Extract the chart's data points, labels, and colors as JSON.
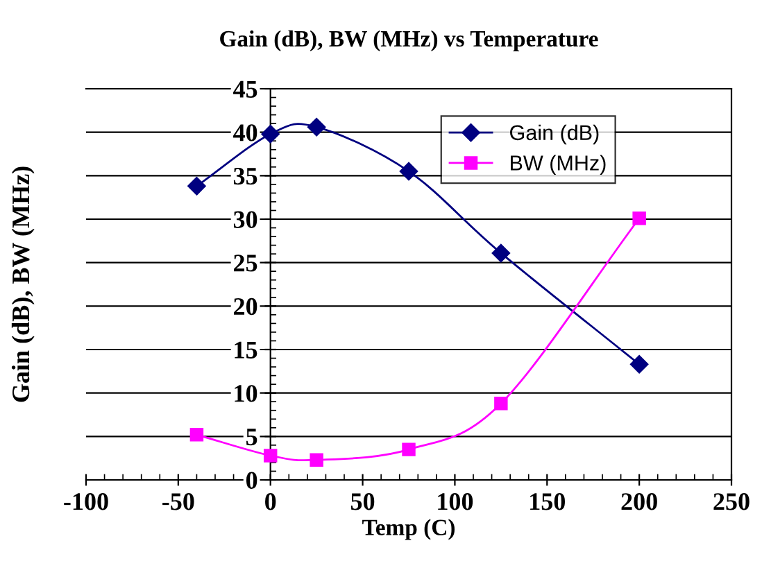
{
  "chart_data": {
    "type": "line",
    "title": "Gain (dB), BW (MHz) vs Temperature",
    "xlabel": "Temp (C)",
    "ylabel": "Gain (dB), BW (MHz)",
    "series": [
      {
        "name": "Gain (dB)",
        "color": "#000080",
        "marker": "diamond",
        "x": [
          -40,
          0,
          25,
          75,
          125,
          200
        ],
        "values": [
          33.8,
          39.8,
          40.6,
          35.5,
          26.1,
          13.3
        ]
      },
      {
        "name": "BW (MHz)",
        "color": "#ff00ff",
        "marker": "square",
        "x": [
          -40,
          0,
          25,
          75,
          125,
          200
        ],
        "values": [
          5.2,
          2.8,
          2.3,
          3.5,
          8.8,
          30.1
        ]
      }
    ],
    "xlim": [
      -100,
      250
    ],
    "xticks": [
      -100,
      -50,
      0,
      50,
      100,
      150,
      200,
      250
    ],
    "ylim": [
      0,
      45
    ],
    "yticks": [
      0,
      5,
      10,
      15,
      20,
      25,
      30,
      35,
      40,
      45
    ],
    "grid": "y",
    "legend": "top right",
    "line_style": "solid"
  }
}
